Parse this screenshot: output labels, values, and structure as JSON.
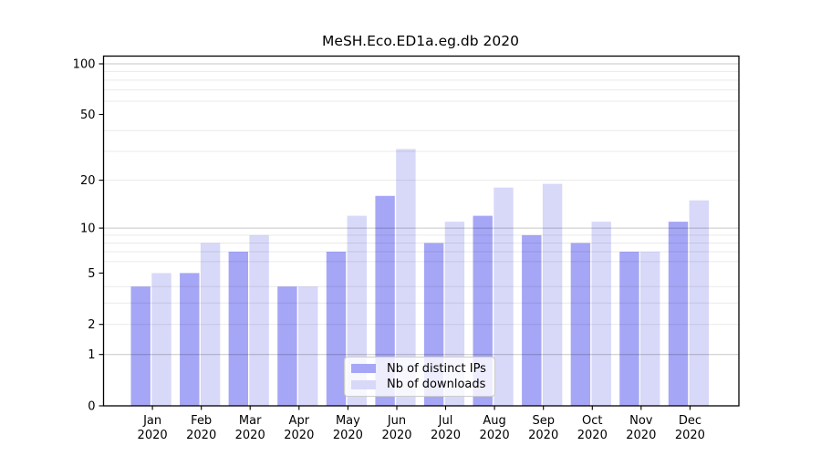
{
  "chart_data": {
    "type": "bar",
    "title": "MeSH.Eco.ED1a.eg.db 2020",
    "categories": [
      "Jan",
      "Feb",
      "Mar",
      "Apr",
      "May",
      "Jun",
      "Jul",
      "Aug",
      "Sep",
      "Oct",
      "Nov",
      "Dec"
    ],
    "x_year_label": "2020",
    "series": [
      {
        "name": "Nb of distinct IPs",
        "color": "#a6a6f6",
        "values": [
          4,
          5,
          7,
          4,
          7,
          16,
          8,
          12,
          9,
          8,
          7,
          11
        ]
      },
      {
        "name": "Nb of downloads",
        "color": "#d8d8f9",
        "values": [
          5,
          8,
          9,
          4,
          12,
          31,
          11,
          18,
          19,
          11,
          7,
          15
        ]
      }
    ],
    "yscale": "log1p",
    "ylim": [
      0,
      111
    ],
    "y_tick_labels": [
      "0",
      "1",
      "2",
      "5",
      "10",
      "20",
      "50",
      "100"
    ],
    "y_tick_values": [
      0,
      1,
      2,
      5,
      10,
      20,
      50,
      100
    ],
    "y_major_gridlines": [
      1,
      10,
      100
    ],
    "y_minor_gridlines": [
      2,
      3,
      4,
      6,
      7,
      8,
      9,
      20,
      30,
      40,
      60,
      70,
      80,
      90
    ],
    "grid": "on",
    "legend_position": "lower center",
    "xlabel": "",
    "ylabel": ""
  }
}
